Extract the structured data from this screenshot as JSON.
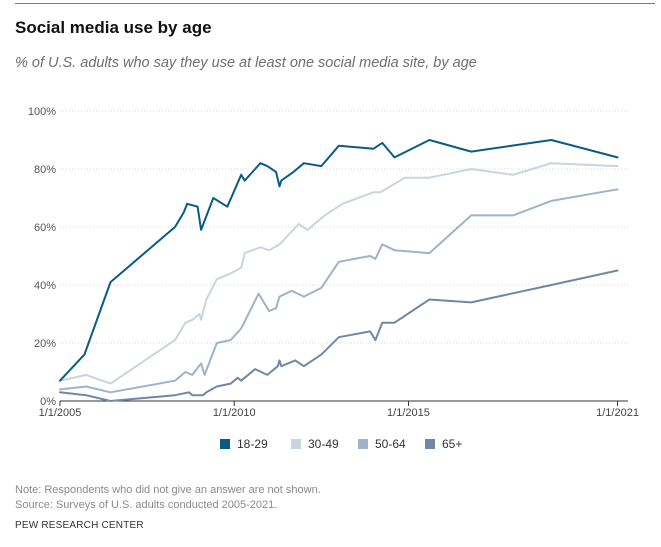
{
  "title": "Social media use by age",
  "subtitle": "% of U.S. adults who say they use at least one social media site, by age",
  "note": "Note: Respondents who did not give an answer are not shown.",
  "source": "Source: Surveys of U.S. adults conducted 2005-2021.",
  "org": "PEW RESEARCH CENTER",
  "chart_data": {
    "type": "line",
    "title": "Social media use by age",
    "xlabel": "",
    "ylabel": "",
    "xlim": [
      2005.0,
      2021.3
    ],
    "ylim": [
      0,
      100
    ],
    "x_ticks": [
      {
        "value": 2005,
        "label": "1/1/2005"
      },
      {
        "value": 2010,
        "label": "1/1/2010"
      },
      {
        "value": 2015,
        "label": "1/1/2015"
      },
      {
        "value": 2021,
        "label": "1/1/2021"
      }
    ],
    "y_ticks": [
      {
        "value": 0,
        "label": "0%"
      },
      {
        "value": 20,
        "label": "20%"
      },
      {
        "value": 40,
        "label": "40%"
      },
      {
        "value": 60,
        "label": "60%"
      },
      {
        "value": 80,
        "label": "80%"
      },
      {
        "value": 100,
        "label": "100%"
      }
    ],
    "grid": true,
    "legend_position": "bottom",
    "series": [
      {
        "name": "18-29",
        "color": "#0b5b84",
        "points": [
          [
            2005.0,
            7
          ],
          [
            2005.7,
            16
          ],
          [
            2006.45,
            41
          ],
          [
            2008.3,
            60
          ],
          [
            2008.55,
            65
          ],
          [
            2008.65,
            68
          ],
          [
            2008.95,
            67
          ],
          [
            2009.05,
            59
          ],
          [
            2009.4,
            70
          ],
          [
            2009.8,
            67
          ],
          [
            2010.2,
            78
          ],
          [
            2010.3,
            76
          ],
          [
            2010.75,
            82
          ],
          [
            2010.95,
            81
          ],
          [
            2011.2,
            79
          ],
          [
            2011.3,
            74
          ],
          [
            2011.35,
            76
          ],
          [
            2011.7,
            79
          ],
          [
            2012.0,
            82
          ],
          [
            2012.5,
            81
          ],
          [
            2013.0,
            88
          ],
          [
            2014.0,
            87
          ],
          [
            2014.25,
            89
          ],
          [
            2014.6,
            84
          ],
          [
            2015.6,
            90
          ],
          [
            2016.8,
            86
          ],
          [
            2019.1,
            90
          ],
          [
            2021.0,
            84
          ]
        ]
      },
      {
        "name": "30-49",
        "color": "#c9d4de",
        "points": [
          [
            2005.0,
            7
          ],
          [
            2005.75,
            9
          ],
          [
            2006.45,
            6
          ],
          [
            2008.3,
            21
          ],
          [
            2008.6,
            27
          ],
          [
            2008.8,
            28
          ],
          [
            2009.0,
            30
          ],
          [
            2009.05,
            28
          ],
          [
            2009.2,
            35
          ],
          [
            2009.5,
            42
          ],
          [
            2009.9,
            44
          ],
          [
            2010.2,
            46
          ],
          [
            2010.3,
            51
          ],
          [
            2010.75,
            53
          ],
          [
            2011.0,
            52
          ],
          [
            2011.3,
            54
          ],
          [
            2011.85,
            61
          ],
          [
            2012.1,
            59
          ],
          [
            2012.6,
            64
          ],
          [
            2013.1,
            68
          ],
          [
            2014.0,
            72
          ],
          [
            2014.2,
            72
          ],
          [
            2014.9,
            77
          ],
          [
            2015.6,
            77
          ],
          [
            2016.8,
            80
          ],
          [
            2018.0,
            78
          ],
          [
            2019.1,
            82
          ],
          [
            2021.0,
            81
          ]
        ]
      },
      {
        "name": "50-64",
        "color": "#9fb3c8",
        "points": [
          [
            2005.0,
            4
          ],
          [
            2005.75,
            5
          ],
          [
            2006.45,
            3
          ],
          [
            2008.3,
            7
          ],
          [
            2008.6,
            10
          ],
          [
            2008.8,
            9
          ],
          [
            2009.05,
            13
          ],
          [
            2009.15,
            9
          ],
          [
            2009.5,
            20
          ],
          [
            2009.9,
            21
          ],
          [
            2010.2,
            25
          ],
          [
            2010.7,
            37
          ],
          [
            2011.0,
            31
          ],
          [
            2011.2,
            32
          ],
          [
            2011.3,
            36
          ],
          [
            2011.65,
            38
          ],
          [
            2012.0,
            36
          ],
          [
            2012.5,
            39
          ],
          [
            2013.0,
            48
          ],
          [
            2013.9,
            50
          ],
          [
            2014.05,
            49
          ],
          [
            2014.25,
            54
          ],
          [
            2014.6,
            52
          ],
          [
            2015.6,
            51
          ],
          [
            2016.8,
            64
          ],
          [
            2018.0,
            64
          ],
          [
            2019.1,
            69
          ],
          [
            2021.0,
            73
          ]
        ]
      },
      {
        "name": "65+",
        "color": "#6e88a6",
        "points": [
          [
            2005.0,
            3
          ],
          [
            2005.75,
            2
          ],
          [
            2006.45,
            0
          ],
          [
            2008.3,
            2
          ],
          [
            2008.7,
            3
          ],
          [
            2008.8,
            2
          ],
          [
            2009.1,
            2
          ],
          [
            2009.2,
            3
          ],
          [
            2009.5,
            5
          ],
          [
            2009.9,
            6
          ],
          [
            2010.1,
            8
          ],
          [
            2010.2,
            7
          ],
          [
            2010.6,
            11
          ],
          [
            2010.95,
            9
          ],
          [
            2011.25,
            12
          ],
          [
            2011.3,
            14
          ],
          [
            2011.35,
            12
          ],
          [
            2011.75,
            14
          ],
          [
            2012.0,
            12
          ],
          [
            2012.5,
            16
          ],
          [
            2013.0,
            22
          ],
          [
            2013.9,
            24
          ],
          [
            2014.05,
            21
          ],
          [
            2014.25,
            27
          ],
          [
            2014.6,
            27
          ],
          [
            2015.6,
            35
          ],
          [
            2016.8,
            34
          ],
          [
            2019.1,
            40
          ],
          [
            2021.0,
            45
          ]
        ]
      }
    ]
  }
}
